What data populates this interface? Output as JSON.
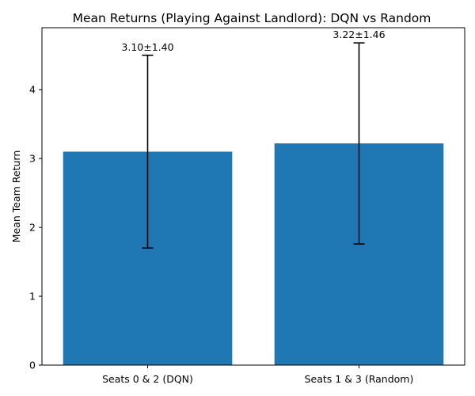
{
  "chart_data": {
    "type": "bar",
    "title": "Mean Returns (Playing Against Landlord): DQN vs Random",
    "xlabel": "",
    "ylabel": "Mean Team Return",
    "categories": [
      "Seats 0 & 2 (DQN)",
      "Seats 1 & 3 (Random)"
    ],
    "values": [
      3.1,
      3.22
    ],
    "errors": [
      1.4,
      1.46
    ],
    "data_labels": [
      "3.10±1.40",
      "3.22±1.46"
    ],
    "ylim": [
      0,
      4.9
    ],
    "yticks": [
      0,
      1,
      2,
      3,
      4
    ],
    "grid": false,
    "colors": {
      "bar": "#1f77b4",
      "error": "#000000",
      "axis": "#000000"
    }
  }
}
